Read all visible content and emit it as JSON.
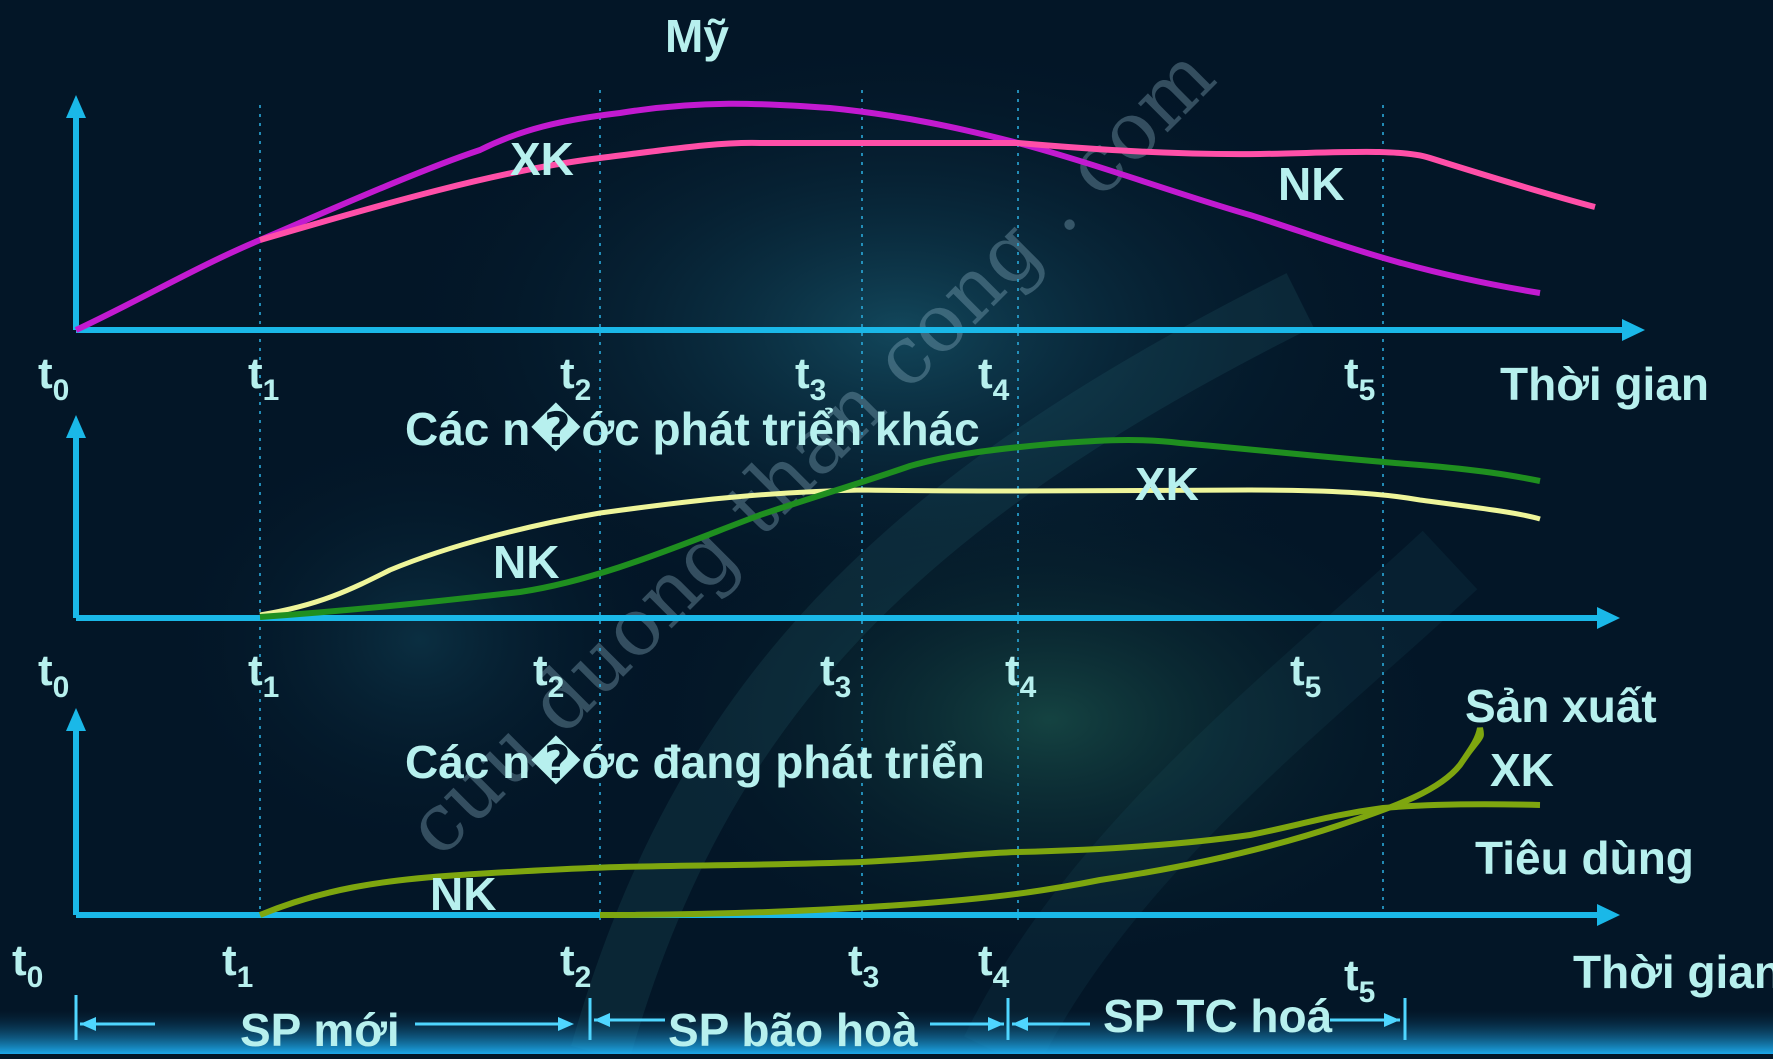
{
  "colors": {
    "background": "#031627",
    "axis": "#1ab8e8",
    "label": "#b7f0ee",
    "us_xk": "#c21ad0",
    "us_nk": "#ff4fa8",
    "dev_nk": "#eef59a",
    "dev_xk": "#1f8f1f",
    "ldc_curve": "#7ea60f",
    "watermark": "#8fb6c8"
  },
  "watermark": "cuu duong than cong . com",
  "panel1": {
    "title": "Mỹ",
    "label_xk": "XK",
    "label_nk": "NK",
    "x_axis_label": "Thời gian",
    "ticks": [
      "t",
      "t",
      "t",
      "t",
      "t",
      "t"
    ],
    "tick_subs": [
      "0",
      "1",
      "2",
      "3",
      "4",
      "5"
    ]
  },
  "panel2": {
    "title": "Các n�ớc phát triển khác",
    "label_nk": "NK",
    "label_xk": "XK",
    "ticks": [
      "t",
      "t",
      "t",
      "t",
      "t",
      "t"
    ],
    "tick_subs": [
      "0",
      "1",
      "2",
      "3",
      "4",
      "5"
    ]
  },
  "panel3": {
    "title": "Các n�ớc đang phát triển",
    "label_nk": "NK",
    "label_xk": "XK",
    "label_production": "Sản xuất",
    "label_consumption": "Tiêu dùng",
    "x_axis_label": "Thời gian",
    "ticks": [
      "t",
      "t",
      "t",
      "t",
      "t",
      "t"
    ],
    "tick_subs": [
      "0",
      "1",
      "2",
      "3",
      "4",
      "5"
    ]
  },
  "phases": [
    "SP mới",
    "SP bão hoà",
    "SP TC hoá"
  ]
}
